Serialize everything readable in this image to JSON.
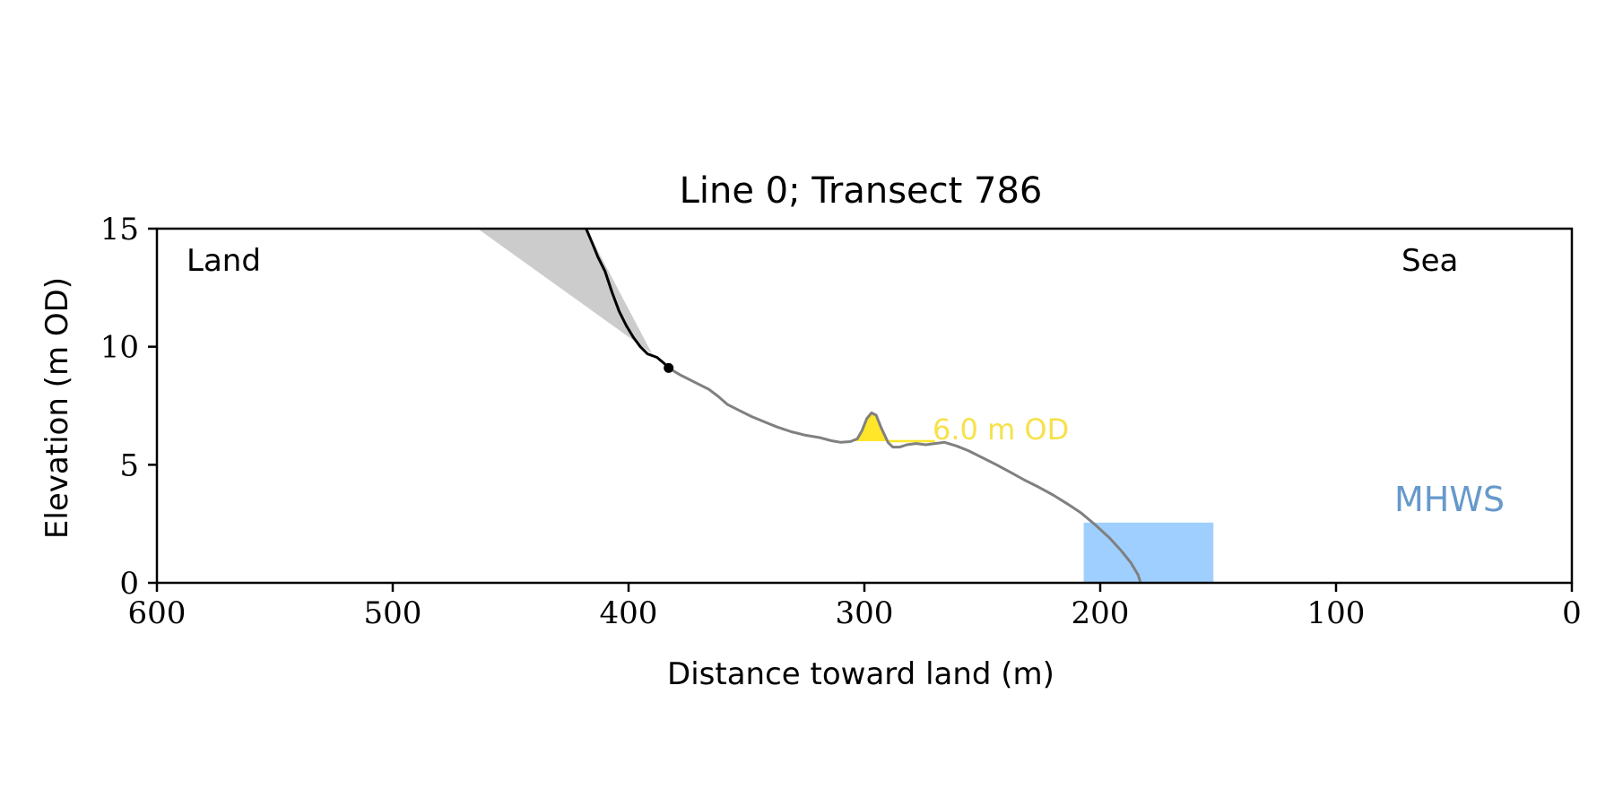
{
  "chart_data": {
    "type": "line",
    "title": "Line 0; Transect 786",
    "xlabel": "Distance toward land (m)",
    "ylabel": "Elevation (m OD)",
    "xlim": [
      600,
      0
    ],
    "ylim": [
      0,
      15
    ],
    "x_ticks": [
      600,
      500,
      400,
      300,
      200,
      100,
      0
    ],
    "y_ticks": [
      0,
      5,
      10,
      15
    ],
    "grid": false,
    "annotations": {
      "land": "Land",
      "sea": "Sea",
      "mhws_label": "MHWS",
      "threshold_label": "6.0 m OD"
    },
    "colors": {
      "cliff_line": "#000000",
      "profile_line": "#808080",
      "talus_fill": "#cccccc",
      "threshold_fill": "#ffe629",
      "threshold_text": "#f7e14a",
      "mhws_fill": "#9fcfff",
      "mhws_text": "#6699cc"
    },
    "threshold": 6.0,
    "mhws": {
      "x_start": 207,
      "x_end": 152,
      "level": 2.55
    },
    "talus_wedge": [
      [
        464,
        15
      ],
      [
        418,
        15
      ],
      [
        390,
        9.7
      ]
    ],
    "cliff_top_marker": [
      383,
      9.1
    ],
    "cliff_profile": [
      [
        418,
        15
      ],
      [
        415,
        14.3
      ],
      [
        413,
        13.8
      ],
      [
        410,
        13.2
      ],
      [
        407,
        12.3
      ],
      [
        404,
        11.5
      ],
      [
        401,
        10.9
      ],
      [
        398,
        10.4
      ],
      [
        395,
        10.0
      ],
      [
        392,
        9.7
      ],
      [
        388,
        9.55
      ],
      [
        385,
        9.3
      ],
      [
        383,
        9.1
      ]
    ],
    "ground_profile": [
      [
        383,
        9.1
      ],
      [
        378,
        8.8
      ],
      [
        372,
        8.5
      ],
      [
        366,
        8.2
      ],
      [
        362,
        7.9
      ],
      [
        358,
        7.55
      ],
      [
        353,
        7.3
      ],
      [
        348,
        7.05
      ],
      [
        342,
        6.8
      ],
      [
        337,
        6.6
      ],
      [
        331,
        6.4
      ],
      [
        325,
        6.25
      ],
      [
        319,
        6.15
      ],
      [
        314,
        6.02
      ],
      [
        310,
        5.95
      ],
      [
        306,
        5.98
      ],
      [
        303,
        6.1
      ],
      [
        301,
        6.45
      ],
      [
        299,
        6.95
      ],
      [
        297,
        7.2
      ],
      [
        295,
        7.1
      ],
      [
        293,
        6.6
      ],
      [
        290,
        5.95
      ],
      [
        288,
        5.75
      ],
      [
        285,
        5.75
      ],
      [
        282,
        5.85
      ],
      [
        278,
        5.9
      ],
      [
        274,
        5.85
      ],
      [
        270,
        5.9
      ],
      [
        266,
        5.95
      ],
      [
        261,
        5.8
      ],
      [
        256,
        5.6
      ],
      [
        250,
        5.3
      ],
      [
        244,
        5.0
      ],
      [
        238,
        4.68
      ],
      [
        232,
        4.35
      ],
      [
        226,
        4.05
      ],
      [
        220,
        3.72
      ],
      [
        214,
        3.35
      ],
      [
        208,
        2.95
      ],
      [
        202,
        2.45
      ],
      [
        196,
        1.9
      ],
      [
        191,
        1.35
      ],
      [
        187,
        0.85
      ],
      [
        184,
        0.35
      ],
      [
        183,
        0.05
      ]
    ]
  }
}
